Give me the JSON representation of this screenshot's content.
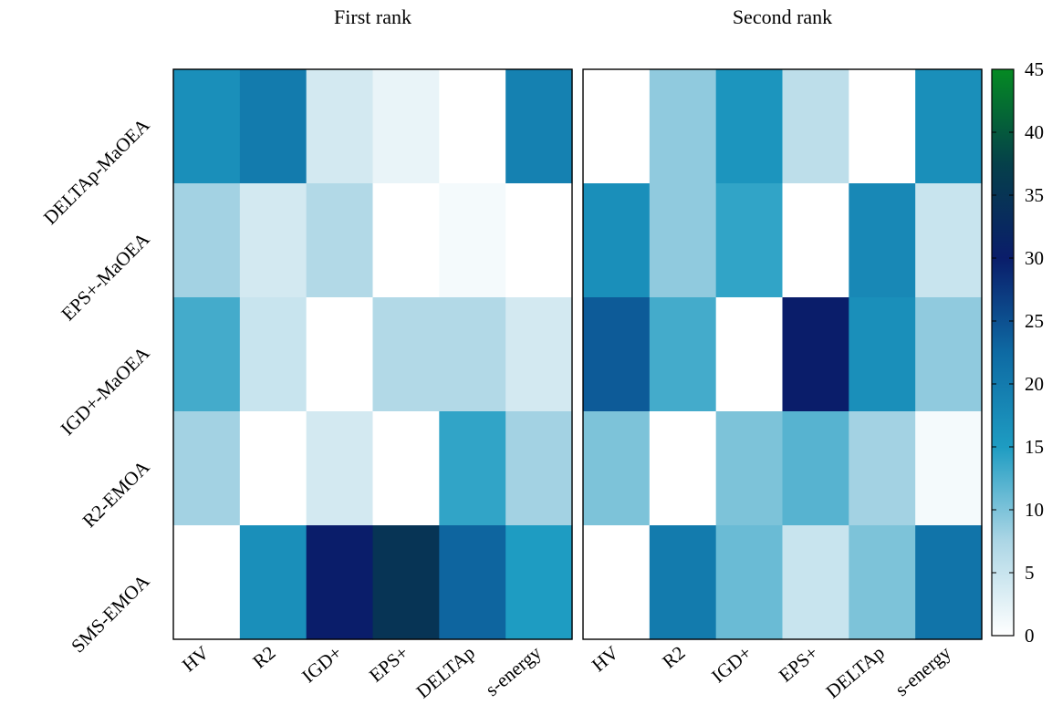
{
  "chart_data": {
    "type": "heatmap",
    "rows": [
      "DELTAp-MaOEA",
      "EPS+-MaOEA",
      "IGD+-MaOEA",
      "R2-EMOA",
      "SMS-EMOA"
    ],
    "columns": [
      "HV",
      "R2",
      "IGD+",
      "EPS+",
      "DELTAp",
      "s-energy"
    ],
    "panels": [
      {
        "title": "First rank",
        "values": [
          [
            17,
            20,
            4,
            2,
            0,
            19
          ],
          [
            8,
            4,
            7,
            0,
            1,
            0
          ],
          [
            13,
            5,
            0,
            7,
            7,
            4
          ],
          [
            8,
            0,
            4,
            0,
            14,
            8
          ],
          [
            0,
            17,
            30,
            35,
            23,
            15
          ]
        ]
      },
      {
        "title": "Second rank",
        "values": [
          [
            0,
            9,
            16,
            6,
            0,
            17
          ],
          [
            17,
            9,
            14,
            0,
            18,
            5
          ],
          [
            24,
            13,
            0,
            30,
            17,
            9
          ],
          [
            10,
            0,
            10,
            12,
            8,
            1
          ],
          [
            0,
            20,
            11,
            5,
            10,
            21
          ]
        ]
      }
    ],
    "colorbar": {
      "min": 0,
      "max": 45,
      "ticks": [
        0,
        5,
        10,
        15,
        20,
        25,
        30,
        35,
        40,
        45
      ],
      "colormap": [
        "#ffffff",
        "#acd6e5",
        "#1e9cc2",
        "#0e6aa3",
        "#0a1d6a",
        "#05404a",
        "#058a23"
      ]
    }
  }
}
